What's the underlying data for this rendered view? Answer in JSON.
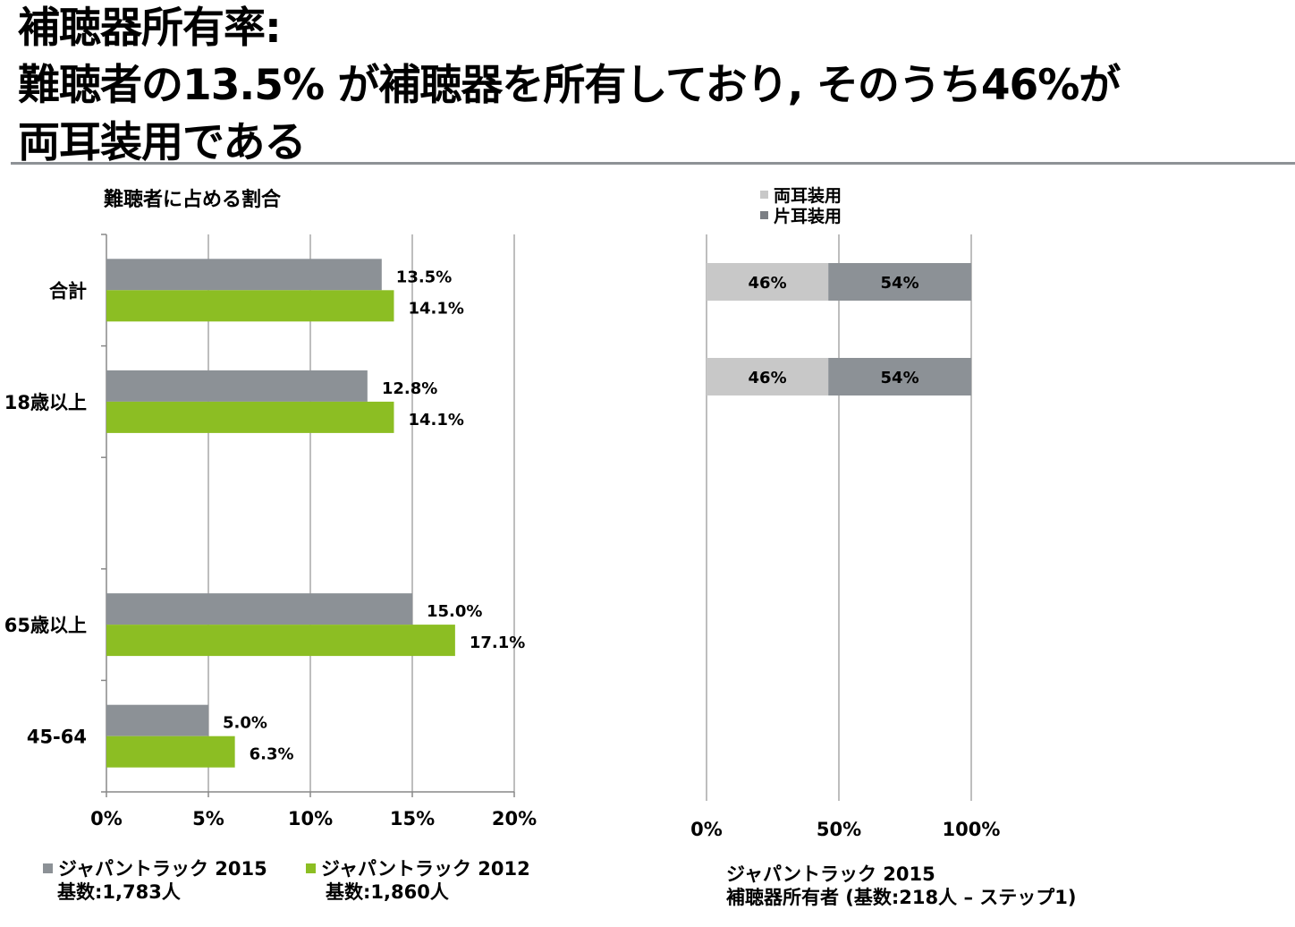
{
  "headline": {
    "line1": "補聴器所有率:",
    "line2": "難聴者の13.5% が補聴器を所有しており, そのうち46%が",
    "line3": "両耳装用である"
  },
  "chart_data": [
    {
      "type": "bar",
      "orientation": "horizontal",
      "title": "難聴者に占める割合",
      "categories": [
        "合計",
        "18歳以上",
        "",
        "65歳以上",
        "45-64"
      ],
      "series": [
        {
          "name": "ジャパントラック 2015",
          "sub": "基数:1,783人",
          "color": "#8c9196",
          "values": [
            13.5,
            12.8,
            null,
            15.0,
            5.0
          ],
          "labels": [
            "13.5%",
            "12.8%",
            "",
            "15.0%",
            "5.0%"
          ]
        },
        {
          "name": "ジャパントラック 2012",
          "sub": "基数:1,860人",
          "color": "#8cbe23",
          "values": [
            14.1,
            14.1,
            null,
            17.1,
            6.3
          ],
          "labels": [
            "14.1%",
            "14.1%",
            "",
            "17.1%",
            "6.3%"
          ]
        }
      ],
      "xlim": [
        0,
        20
      ],
      "xticks": [
        0,
        5,
        10,
        15,
        20
      ],
      "xtick_labels": [
        "0%",
        "5%",
        "10%",
        "15%",
        "20%"
      ],
      "grid": true,
      "legend": "bottom"
    },
    {
      "type": "bar",
      "orientation": "horizontal",
      "stacked": true,
      "categories": [
        "",
        ""
      ],
      "series": [
        {
          "name": "両耳装用",
          "color": "#c8c8c8",
          "values": [
            46,
            46
          ],
          "labels": [
            "46%",
            "46%"
          ]
        },
        {
          "name": "片耳装用",
          "color": "#8c9196",
          "values": [
            54,
            54
          ],
          "labels": [
            "54%",
            "54%"
          ]
        }
      ],
      "xlim": [
        0,
        100
      ],
      "xticks": [
        0,
        50,
        100
      ],
      "xtick_labels": [
        "0%",
        "50%",
        "100%"
      ],
      "grid": true,
      "legend": "top",
      "note_line1": "ジャパントラック 2015",
      "note_line2": "補聴器所有者 (基数:218人 – ステップ1)"
    }
  ]
}
